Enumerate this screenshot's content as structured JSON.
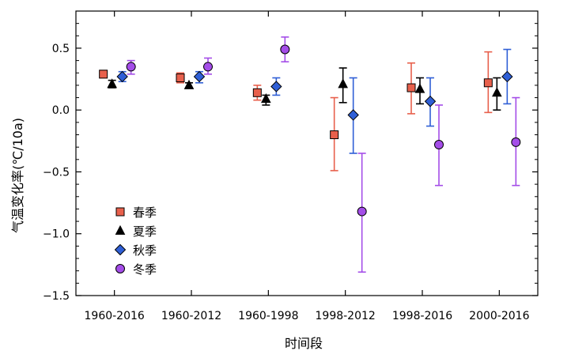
{
  "chart_data": {
    "type": "scatter",
    "title": "",
    "xlabel": "时间段",
    "ylabel": "气温变化率(℃/10a)",
    "categories": [
      "1960-2016",
      "1960-2012",
      "1960-1998",
      "1998-2012",
      "1998-2016",
      "2000-2016"
    ],
    "ylim": [
      -1.5,
      0.8
    ],
    "yticks": [
      -1.5,
      -1.0,
      -0.5,
      0.0,
      0.5
    ],
    "ytick_labels": [
      "−1.5",
      "−1.0",
      "−0.5",
      "0.0",
      "0.5"
    ],
    "grid": false,
    "legend_position": "lower-left",
    "series": [
      {
        "name": "春季",
        "marker": "square",
        "color": "#e8604c",
        "values": [
          0.29,
          0.26,
          0.14,
          -0.2,
          0.18,
          0.22
        ],
        "err_low": [
          0.26,
          0.22,
          0.08,
          -0.49,
          -0.03,
          -0.02
        ],
        "err_high": [
          0.32,
          0.3,
          0.2,
          0.1,
          0.38,
          0.47
        ]
      },
      {
        "name": "夏季",
        "marker": "triangle",
        "color": "#000000",
        "values": [
          0.21,
          0.2,
          0.09,
          0.21,
          0.17,
          0.14
        ],
        "err_low": [
          0.18,
          0.18,
          0.04,
          0.06,
          0.05,
          0.0
        ],
        "err_high": [
          0.24,
          0.22,
          0.12,
          0.34,
          0.26,
          0.26
        ]
      },
      {
        "name": "秋季",
        "marker": "diamond",
        "color": "#2f5fd6",
        "values": [
          0.27,
          0.27,
          0.19,
          -0.04,
          0.07,
          0.27
        ],
        "err_low": [
          0.23,
          0.22,
          0.12,
          -0.35,
          -0.13,
          0.05
        ],
        "err_high": [
          0.31,
          0.31,
          0.26,
          0.26,
          0.26,
          0.49
        ]
      },
      {
        "name": "冬季",
        "marker": "circle",
        "color": "#a44de8",
        "values": [
          0.35,
          0.35,
          0.49,
          -0.82,
          -0.28,
          -0.26
        ],
        "err_low": [
          0.29,
          0.29,
          0.39,
          -1.31,
          -0.61,
          -0.61
        ],
        "err_high": [
          0.4,
          0.42,
          0.59,
          -0.35,
          0.04,
          0.1
        ]
      }
    ]
  }
}
